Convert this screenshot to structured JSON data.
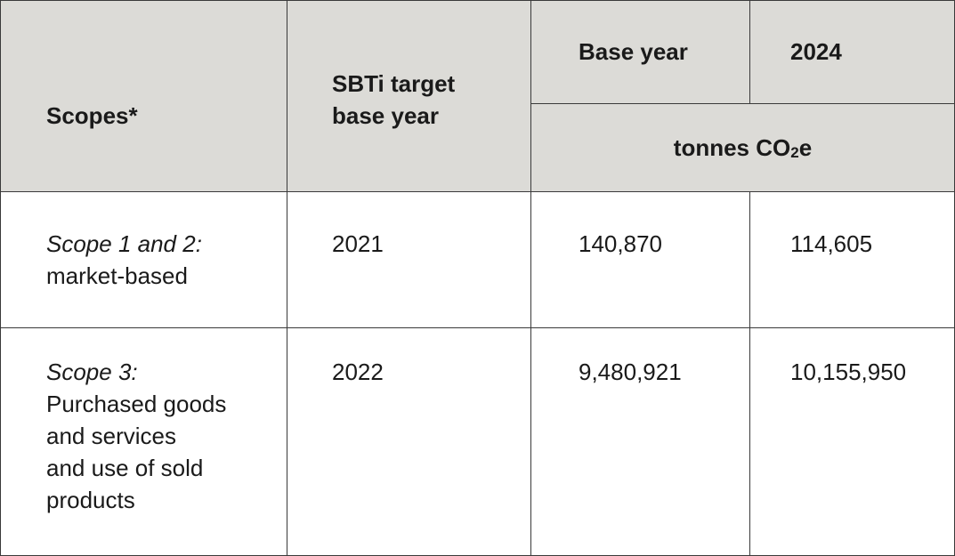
{
  "table": {
    "header": {
      "scopes": "Scopes*",
      "sbti": "SBTi target\nbase year",
      "base_year": "Base year",
      "current_year": "2024",
      "unit": {
        "text": "tonnes CO",
        "sub": "2",
        "suffix": "e"
      }
    },
    "rows": [
      {
        "scope": "Scope 1 and 2:",
        "description": "market-based",
        "target_year": "2021",
        "base_value": "140,870",
        "current_value": "114,605"
      },
      {
        "scope": "Scope 3:",
        "description": "Purchased goods\nand services\nand use of sold\nproducts",
        "target_year": "2022",
        "base_value": "9,480,921",
        "current_value": "10,155,950"
      }
    ]
  }
}
